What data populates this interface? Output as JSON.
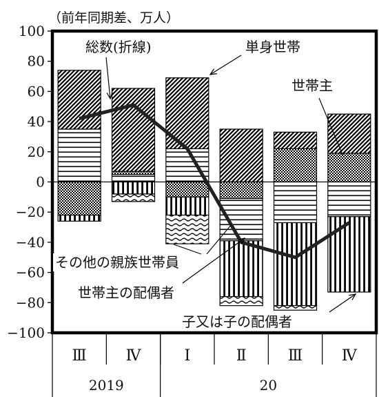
{
  "chart_data": {
    "type": "bar",
    "stacked": true,
    "unit": "（前年同期差、万人）",
    "ylim": [
      -100,
      100
    ],
    "yticks": [
      100,
      80,
      60,
      40,
      20,
      0,
      -20,
      -40,
      -60,
      -80,
      -100
    ],
    "quarters": [
      "Ⅲ",
      "Ⅳ",
      "Ⅰ",
      "Ⅱ",
      "Ⅲ",
      "Ⅳ"
    ],
    "years": [
      {
        "label": "2019",
        "span": 2
      },
      {
        "label": "20",
        "span": 4
      }
    ],
    "series": [
      {
        "name": "世帯主",
        "pattern": "horizontal",
        "values": [
          35,
          5,
          22,
          0,
          0,
          0
        ]
      },
      {
        "name": "世帯主",
        "pattern": "crosshatch",
        "values": [
          0,
          2,
          0,
          0,
          22,
          19
        ]
      },
      {
        "name": "単身世帯",
        "pattern": "diagonal",
        "values": [
          39,
          55,
          47,
          35,
          11,
          26
        ]
      },
      {
        "name": "世帯主",
        "pattern": "crosshatch",
        "values": [
          -22,
          0,
          -10,
          -11,
          0,
          0
        ]
      },
      {
        "name": "世帯主の配偶者",
        "pattern": "horizontal",
        "values": [
          0,
          0,
          0,
          -28,
          -27,
          -23
        ]
      },
      {
        "name": "子又は子の配偶者",
        "pattern": "vertical",
        "values": [
          -4,
          -8,
          -12,
          -37,
          -55,
          -50
        ]
      },
      {
        "name": "その他の親族世帯員",
        "pattern": "wavy",
        "values": [
          0,
          -5,
          -19,
          -6,
          -3,
          0
        ]
      }
    ],
    "total_line": {
      "name": "総数(折線)",
      "values": [
        42,
        51,
        22,
        -40,
        -50,
        -27
      ]
    }
  },
  "annotations": {
    "total": "総数(折線)",
    "single": "単身世帯",
    "head": "世帯主",
    "other": "その他の親族世帯員",
    "spouse": "世帯主の配偶者",
    "child": "子又は子の配偶者"
  }
}
